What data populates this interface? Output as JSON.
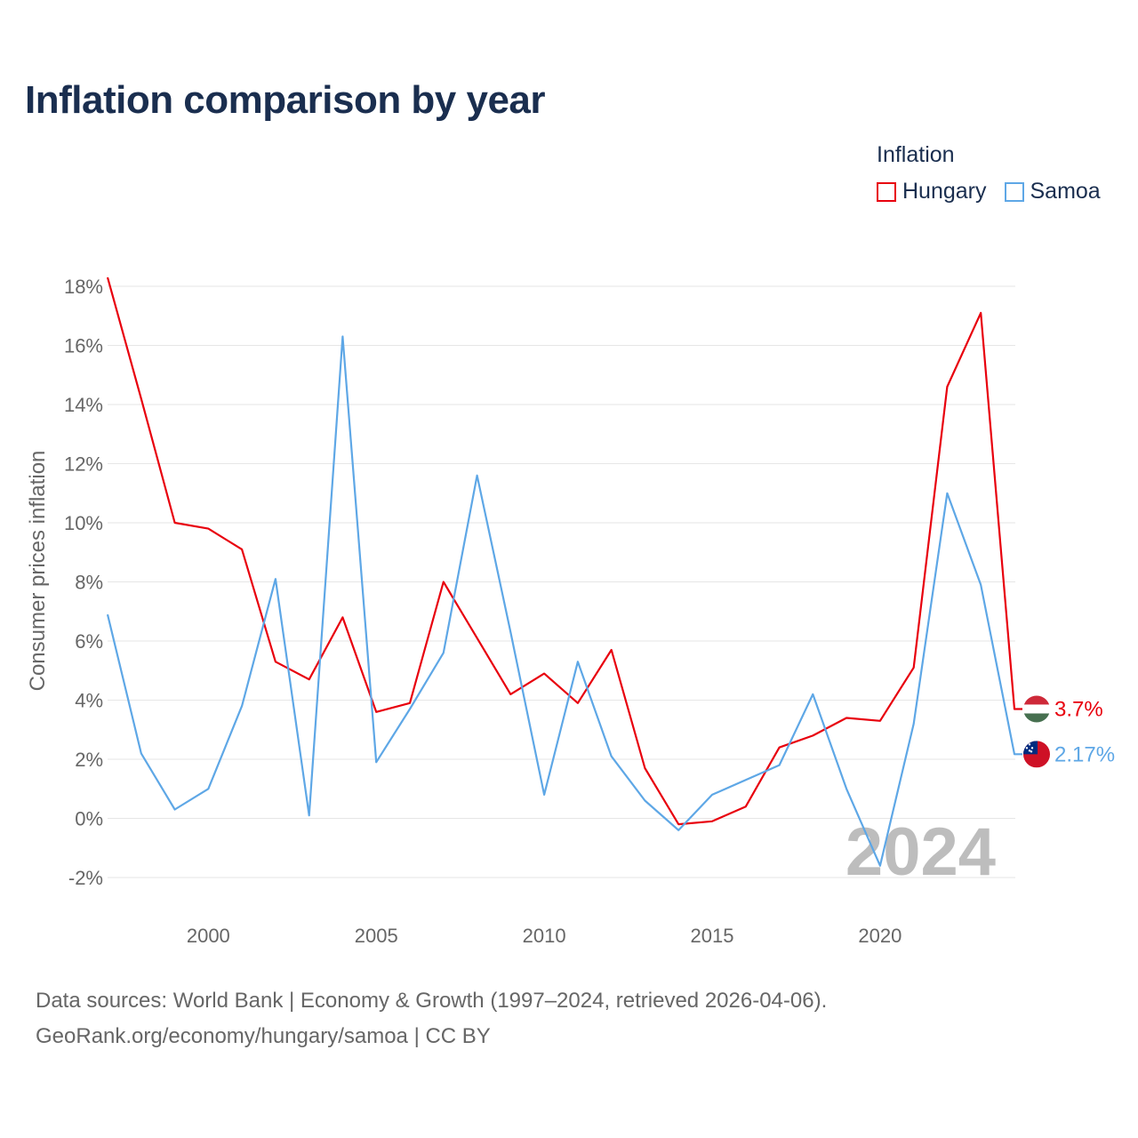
{
  "title": "Inflation comparison by year",
  "legend": {
    "title": "Inflation",
    "items": [
      {
        "name": "Hungary",
        "color": "#e8000d"
      },
      {
        "name": "Samoa",
        "color": "#5ea7e6"
      }
    ]
  },
  "footer": {
    "line1": "Data sources: World Bank | Economy & Growth (1997–2024, retrieved 2026-04-06).",
    "line2": "GeoRank.org/economy/hungary/samoa | CC BY"
  },
  "chart_data": {
    "type": "line",
    "title": "Inflation comparison by year",
    "ylabel": "Consumer prices inflation",
    "xlabel": "",
    "year_label": "2024",
    "xlim": [
      1997,
      2024
    ],
    "ylim": [
      -2,
      18
    ],
    "x_ticks": [
      2000,
      2005,
      2010,
      2015,
      2020
    ],
    "x_tick_labels": [
      "2000",
      "2005",
      "2010",
      "2015",
      "2020"
    ],
    "y_ticks": [
      -2,
      0,
      2,
      4,
      6,
      8,
      10,
      12,
      14,
      16,
      18
    ],
    "y_tick_labels": [
      "-2%",
      "0%",
      "2%",
      "4%",
      "6%",
      "8%",
      "10%",
      "12%",
      "14%",
      "16%",
      "18%"
    ],
    "x": [
      1997,
      1998,
      1999,
      2000,
      2001,
      2002,
      2003,
      2004,
      2005,
      2006,
      2007,
      2008,
      2009,
      2010,
      2011,
      2012,
      2013,
      2014,
      2015,
      2016,
      2017,
      2018,
      2019,
      2020,
      2021,
      2022,
      2023,
      2024
    ],
    "series": [
      {
        "name": "Hungary",
        "color": "#e8000d",
        "end_label": "3.7%",
        "values": [
          18.3,
          14.2,
          10.0,
          9.8,
          9.1,
          5.3,
          4.7,
          6.8,
          3.6,
          3.9,
          8.0,
          6.1,
          4.2,
          4.9,
          3.9,
          5.7,
          1.7,
          -0.2,
          -0.1,
          0.4,
          2.4,
          2.8,
          3.4,
          3.3,
          5.1,
          14.6,
          17.1,
          3.7
        ]
      },
      {
        "name": "Samoa",
        "color": "#5ea7e6",
        "end_label": "2.17%",
        "values": [
          6.9,
          2.2,
          0.3,
          1.0,
          3.8,
          8.1,
          0.1,
          16.3,
          1.9,
          3.7,
          5.6,
          11.6,
          6.3,
          0.8,
          5.3,
          2.1,
          0.6,
          -0.4,
          0.8,
          1.3,
          1.8,
          4.2,
          1.0,
          -1.6,
          3.2,
          11.0,
          7.9,
          2.17
        ]
      }
    ]
  }
}
